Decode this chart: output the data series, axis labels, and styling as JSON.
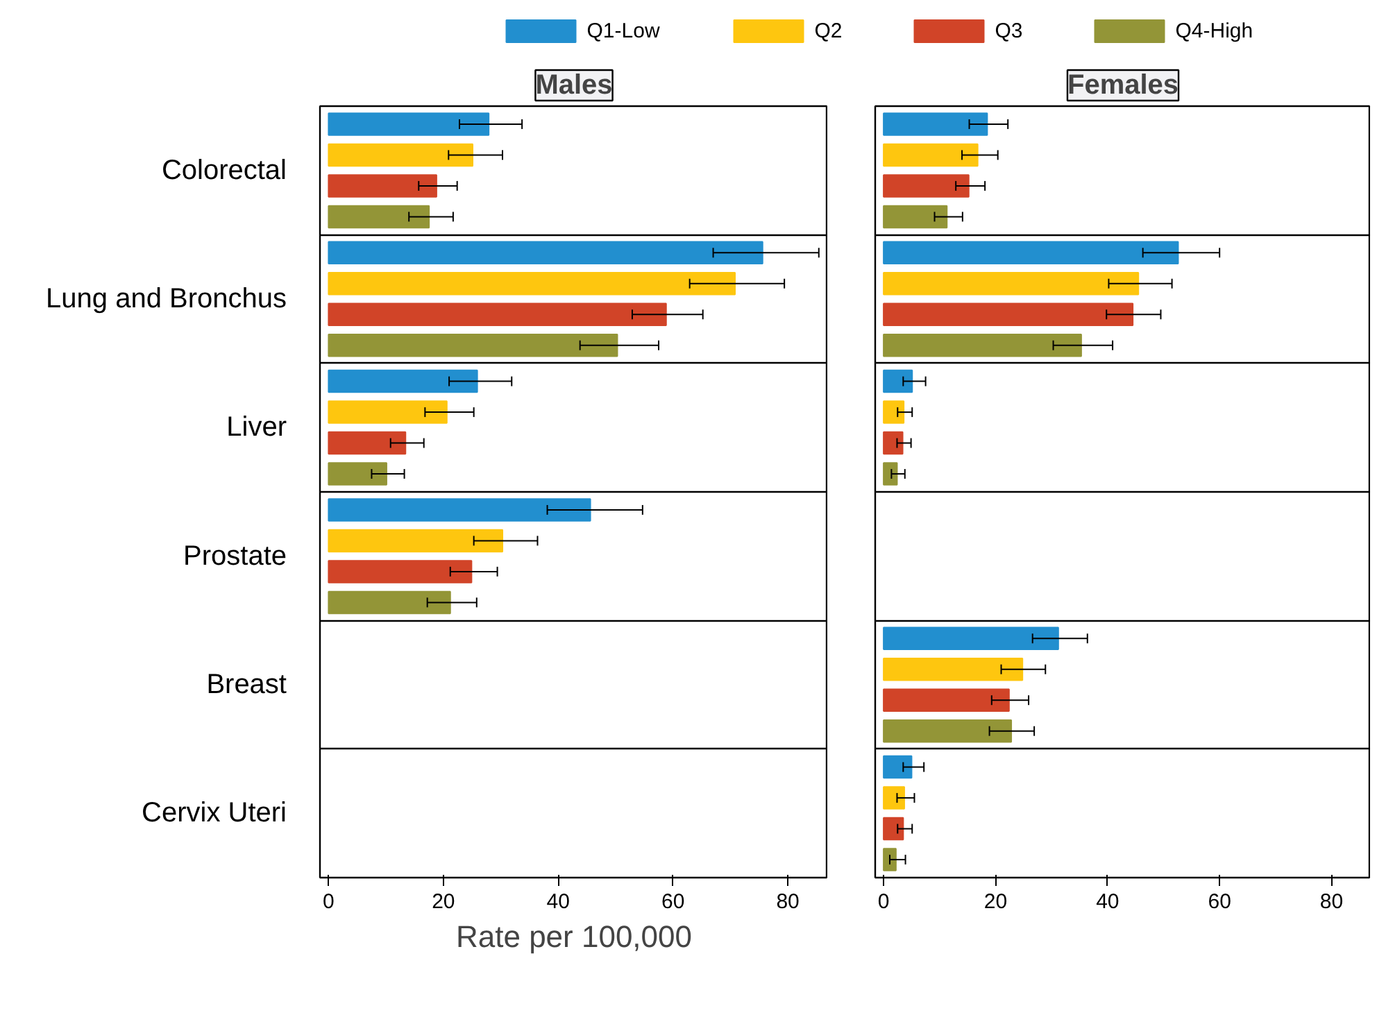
{
  "chart_data": [
    {
      "type": "bar",
      "orientation": "horizontal",
      "title": "Males",
      "xlabel": "Rate per 100,000",
      "categories": [
        "Colorectal",
        "Lung and Bronchus",
        "Liver",
        "Prostate",
        "Breast",
        "Cervix Uteri"
      ],
      "series": [
        {
          "name": "Q1-Low",
          "color": "#228fcf",
          "values": [
            27.9,
            75.6,
            25.9,
            45.6,
            null,
            null
          ],
          "errors": [
            [
              22.8,
              33.7
            ],
            [
              67.0,
              85.4
            ],
            [
              21.0,
              31.9
            ],
            [
              38.1,
              54.7
            ],
            null,
            null
          ]
        },
        {
          "name": "Q2",
          "color": "#fec60f",
          "values": [
            25.1,
            70.8,
            20.6,
            30.3,
            null,
            null
          ],
          "errors": [
            [
              20.9,
              30.3
            ],
            [
              62.9,
              79.4
            ],
            [
              16.8,
              25.3
            ],
            [
              25.3,
              36.4
            ],
            null,
            null
          ]
        },
        {
          "name": "Q3",
          "color": "#d14428",
          "values": [
            18.8,
            58.8,
            13.4,
            24.9,
            null,
            null
          ],
          "errors": [
            [
              15.7,
              22.4
            ],
            [
              52.9,
              65.2
            ],
            [
              10.8,
              16.6
            ],
            [
              21.2,
              29.4
            ],
            null,
            null
          ]
        },
        {
          "name": "Q4-High",
          "color": "#939537",
          "values": [
            17.5,
            50.3,
            10.1,
            21.2,
            null,
            null
          ],
          "errors": [
            [
              14.0,
              21.7
            ],
            [
              43.8,
              57.5
            ],
            [
              7.5,
              13.2
            ],
            [
              17.2,
              25.8
            ],
            null,
            null
          ]
        }
      ],
      "xlim": [
        -1.5,
        87
      ],
      "xticks": [
        0,
        20,
        40,
        60,
        80
      ],
      "legend": "top"
    },
    {
      "type": "bar",
      "orientation": "horizontal",
      "title": "Females",
      "categories": [
        null,
        null,
        null,
        null,
        null,
        null
      ],
      "series": [
        {
          "color": "#228fcf",
          "values": [
            18.5,
            52.6,
            5.1,
            null,
            31.2,
            5.0
          ],
          "errors": [
            [
              15.3,
              22.2
            ],
            [
              46.3,
              60.0
            ],
            [
              3.5,
              7.5
            ],
            null,
            [
              26.6,
              36.4
            ],
            [
              3.5,
              7.2
            ]
          ]
        },
        {
          "color": "#fec60f",
          "values": [
            16.8,
            45.5,
            3.6,
            null,
            24.8,
            3.7
          ],
          "errors": [
            [
              14.0,
              20.4
            ],
            [
              40.2,
              51.5
            ],
            [
              2.5,
              5.1
            ],
            null,
            [
              21.0,
              28.9
            ],
            [
              2.4,
              5.5
            ]
          ]
        },
        {
          "color": "#d14428",
          "values": [
            15.2,
            44.5,
            3.4,
            null,
            22.4,
            3.5
          ],
          "errors": [
            [
              12.9,
              18.1
            ],
            [
              39.8,
              49.5
            ],
            [
              2.4,
              4.9
            ],
            null,
            [
              19.3,
              25.9
            ],
            [
              2.5,
              5.1
            ]
          ]
        },
        {
          "color": "#939537",
          "values": [
            11.3,
            35.3,
            2.4,
            null,
            22.8,
            2.2
          ],
          "errors": [
            [
              9.1,
              14.1
            ],
            [
              30.3,
              40.9
            ],
            [
              1.4,
              3.8
            ],
            null,
            [
              18.9,
              26.9
            ],
            [
              1.1,
              3.9
            ]
          ]
        }
      ],
      "xlim": [
        -1.5,
        87
      ],
      "xticks": [
        0,
        20,
        40,
        60,
        80
      ],
      "tick_labels": "x"
    }
  ]
}
